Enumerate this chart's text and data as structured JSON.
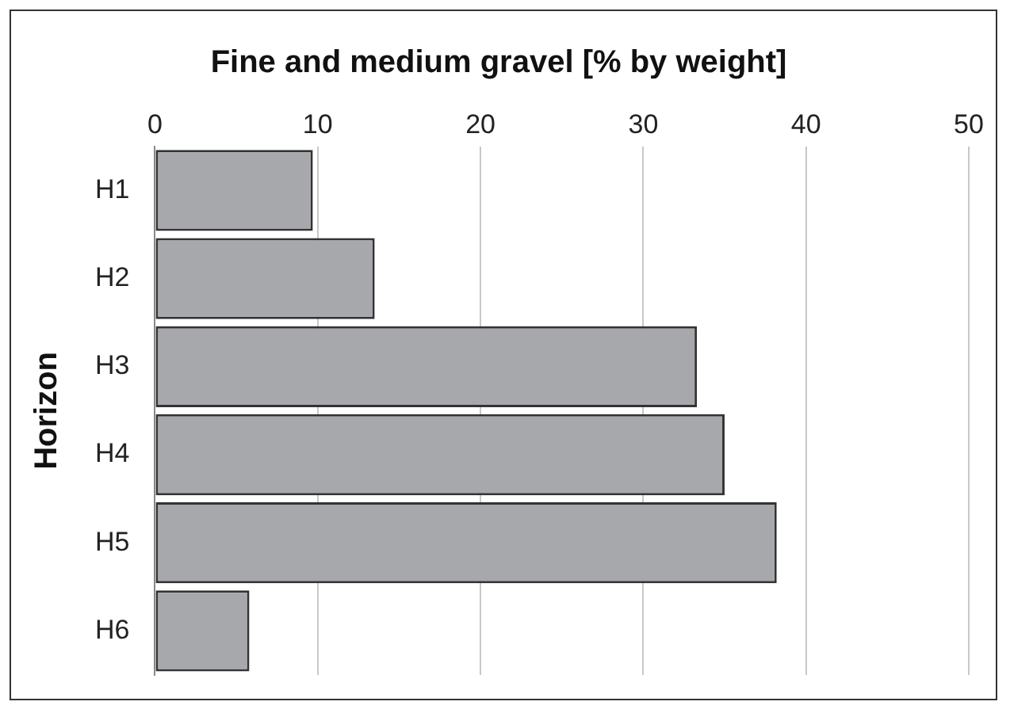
{
  "chart_data": {
    "type": "bar",
    "orientation": "horizontal",
    "title": "Fine and medium gravel [% by weight]",
    "ylabel": "Horizon",
    "categories": [
      "H1",
      "H2",
      "H3",
      "H4",
      "H5",
      "H6"
    ],
    "values": [
      9.7,
      13.5,
      33.3,
      35.0,
      38.2,
      5.8
    ],
    "color": "#a7a8ac",
    "xlim": [
      0,
      50
    ],
    "xticks": [
      0,
      10,
      20,
      30,
      40,
      50
    ],
    "grid": "x",
    "legend": false
  }
}
